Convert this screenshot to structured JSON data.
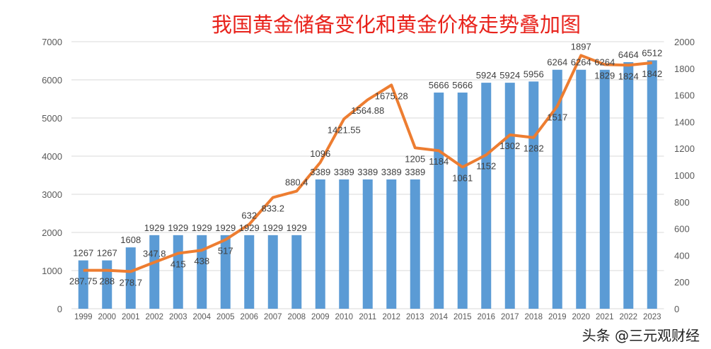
{
  "chart_data": {
    "type": "bar+line",
    "title": "我国黄金储备变化和黄金价格走势叠加图",
    "categories": [
      "1999",
      "2000",
      "2001",
      "2002",
      "2003",
      "2004",
      "2005",
      "2006",
      "2007",
      "2008",
      "2009",
      "2010",
      "2011",
      "2012",
      "2013",
      "2014",
      "2015",
      "2016",
      "2017",
      "2018",
      "2019",
      "2020",
      "2021",
      "2022",
      "2023"
    ],
    "series": [
      {
        "type": "bar",
        "axis": "left",
        "color": "#5b9bd5",
        "values": [
          1267,
          1267,
          1608,
          1929,
          1929,
          1929,
          1929,
          1929,
          1929,
          1929,
          3389,
          3389,
          3389,
          3389,
          3389,
          5666,
          5666,
          5924,
          5924,
          5956,
          6264,
          6264,
          6264,
          6464,
          6512
        ]
      },
      {
        "type": "line",
        "axis": "right",
        "color": "#ed7d31",
        "values": [
          287.75,
          288,
          278.7,
          347.8,
          415,
          438,
          517,
          632,
          833.2,
          880.4,
          1096,
          1421.55,
          1564.88,
          1675.28,
          1205,
          1184,
          1061,
          1152,
          1302,
          1282,
          1517,
          1897,
          1829,
          1824,
          1842
        ]
      }
    ],
    "ylim_left": [
      0,
      7000
    ],
    "yticks_left": [
      0,
      1000,
      2000,
      3000,
      4000,
      5000,
      6000,
      7000
    ],
    "ylim_right": [
      0,
      2000
    ],
    "yticks_right": [
      0,
      200,
      400,
      600,
      800,
      1000,
      1200,
      1400,
      1600,
      1800,
      2000
    ],
    "grid": true,
    "legend": "none"
  },
  "watermark": "头条 @三元观财经"
}
